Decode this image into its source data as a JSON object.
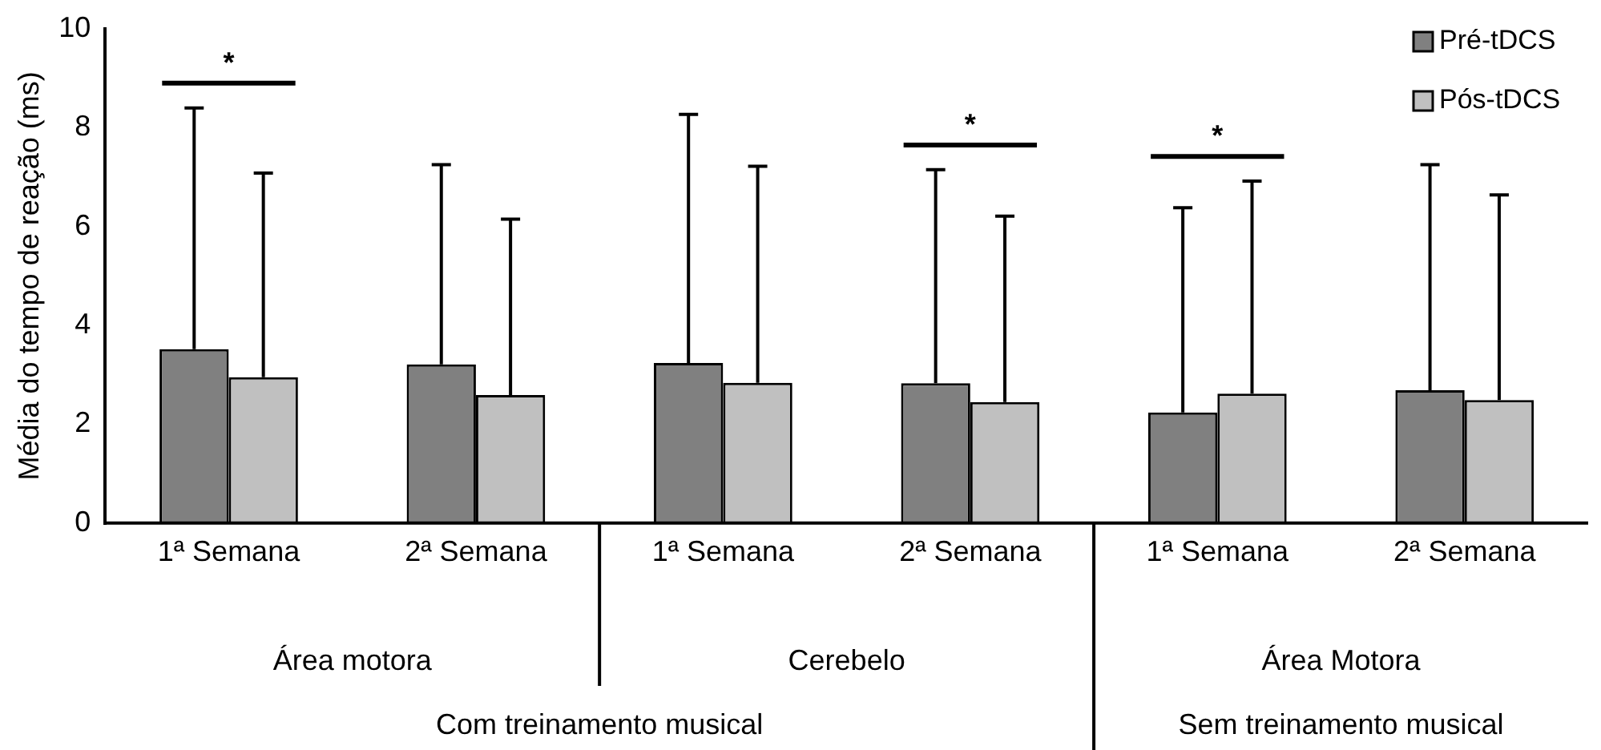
{
  "chart_data": {
    "type": "bar",
    "ylabel": "Média do tempo de reação (ms)",
    "categories": [
      "1ª Semana",
      "2ª Semana",
      "1ª Semana",
      "2ª Semana",
      "1ª Semana",
      "2ª Semana"
    ],
    "series": [
      {
        "name": "Pré-tDCS",
        "color": "#808080",
        "values": [
          3.52,
          3.21,
          3.24,
          2.83,
          2.24,
          2.69
        ],
        "errors": [
          [
            3.52,
            8.4
          ],
          [
            3.21,
            7.25
          ],
          [
            3.24,
            8.27
          ],
          [
            2.83,
            7.15
          ],
          [
            2.24,
            6.38
          ],
          [
            2.69,
            7.25
          ]
        ]
      },
      {
        "name": "Pós-tDCS",
        "color": "#c0c0c0",
        "values": [
          2.95,
          2.59,
          2.84,
          2.45,
          2.62,
          2.49
        ],
        "errors": [
          [
            2.95,
            7.08
          ],
          [
            2.59,
            6.15
          ],
          [
            2.84,
            7.22
          ],
          [
            2.45,
            6.21
          ],
          [
            2.62,
            6.92
          ],
          [
            2.49,
            6.64
          ]
        ]
      }
    ],
    "ylim": [
      0,
      10
    ],
    "yticks": [
      0,
      2,
      4,
      6,
      8,
      10
    ],
    "grid": false,
    "legend": "top right",
    "annotations": [
      "Área motora",
      "Cerebelo",
      "Área Motora",
      "Com treinamento musical",
      "Sem treinamento musical",
      "*",
      "*",
      "*"
    ]
  }
}
